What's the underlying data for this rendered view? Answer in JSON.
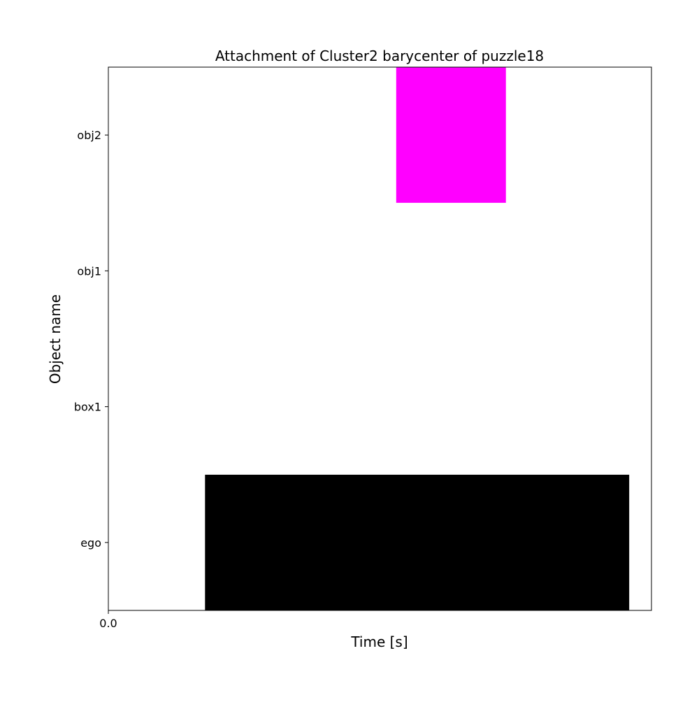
{
  "chart_data": {
    "type": "bar",
    "orientation": "horizontal",
    "title": "Attachment of Cluster2 barycenter of puzzle18",
    "xlabel": "Time [s]",
    "ylabel": "Object name",
    "categories": [
      "ego",
      "box1",
      "obj1",
      "obj2"
    ],
    "x_tick_labels": [
      "0.0"
    ],
    "xlim": [
      0,
      1
    ],
    "bars": [
      {
        "category": "ego",
        "start": 0.178,
        "end": 0.959,
        "color": "#000000"
      },
      {
        "category": "obj2",
        "start": 0.53,
        "end": 0.732,
        "color": "#ff00ff"
      }
    ],
    "grid": false,
    "legend": false
  }
}
